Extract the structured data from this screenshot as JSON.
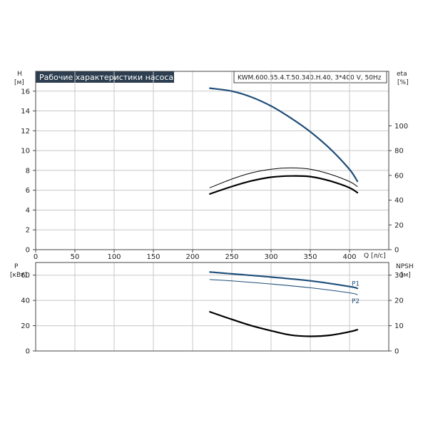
{
  "chart_data": [
    {
      "type": "line",
      "title": "Рабочие характеристики насоса",
      "subtitle": "KWM.600.55.4.T.50.340.H.40, 3*400 V, 50Hz",
      "left_axis": {
        "label_line1": "H",
        "label_line2": "[м]",
        "ticks": [
          0,
          2,
          4,
          6,
          8,
          10,
          12,
          14,
          16
        ],
        "ylim": [
          0,
          18
        ]
      },
      "right_axis": {
        "label_line1": "eta",
        "label_line2": "[%]",
        "ticks": [
          0,
          20,
          40,
          60,
          80,
          100
        ],
        "ylim": [
          0,
          144
        ]
      },
      "x_axis": {
        "label": "Q [л/с]",
        "ticks": [
          0,
          50,
          100,
          150,
          200,
          250,
          300,
          350,
          400
        ],
        "xlim": [
          0,
          450
        ]
      },
      "grid": true,
      "series": [
        {
          "axis": "left",
          "color": "#1f4e79",
          "x": [
            222,
            250,
            275,
            300,
            325,
            350,
            375,
            400,
            410
          ],
          "y": [
            16.3,
            16.0,
            15.4,
            14.5,
            13.3,
            11.9,
            10.2,
            8.1,
            6.9
          ]
        },
        {
          "axis": "right",
          "color": "#000000",
          "thin": true,
          "x": [
            222,
            250,
            275,
            300,
            325,
            350,
            375,
            400,
            410
          ],
          "y": [
            50,
            57,
            62,
            65,
            66,
            65,
            61,
            55,
            51
          ]
        },
        {
          "axis": "right",
          "color": "#000000",
          "x": [
            222,
            250,
            275,
            300,
            325,
            350,
            375,
            400,
            410
          ],
          "y": [
            45,
            51,
            55.5,
            58.5,
            59.5,
            59,
            55.5,
            50,
            46
          ]
        }
      ]
    },
    {
      "type": "line",
      "left_axis": {
        "label_line1": "P",
        "label_line2": "[кВт]",
        "ticks": [
          0,
          20,
          40,
          60
        ],
        "ylim": [
          0,
          70
        ]
      },
      "right_axis": {
        "label_line1": "NPSH",
        "label_line2": "[м]",
        "ticks": [
          0,
          10,
          20,
          30
        ],
        "ylim": [
          0,
          35
        ]
      },
      "x_axis": {
        "xlim": [
          0,
          450
        ]
      },
      "grid": true,
      "series": [
        {
          "name": "P1",
          "axis": "left",
          "color": "#1f4e79",
          "x": [
            222,
            250,
            300,
            350,
            400,
            410
          ],
          "y": [
            62.5,
            61,
            58.5,
            55.5,
            51,
            49.5
          ]
        },
        {
          "name": "P2",
          "axis": "left",
          "color": "#1f4e79",
          "thin": true,
          "x": [
            222,
            250,
            300,
            350,
            400,
            410
          ],
          "y": [
            56.5,
            55.5,
            53,
            50,
            46,
            44.5
          ]
        },
        {
          "axis": "right",
          "color": "#000000",
          "x": [
            222,
            250,
            275,
            300,
            325,
            350,
            375,
            400,
            410
          ],
          "y": [
            15.5,
            12.5,
            10,
            8,
            6.3,
            5.8,
            6.2,
            7.6,
            8.4
          ]
        }
      ]
    }
  ]
}
